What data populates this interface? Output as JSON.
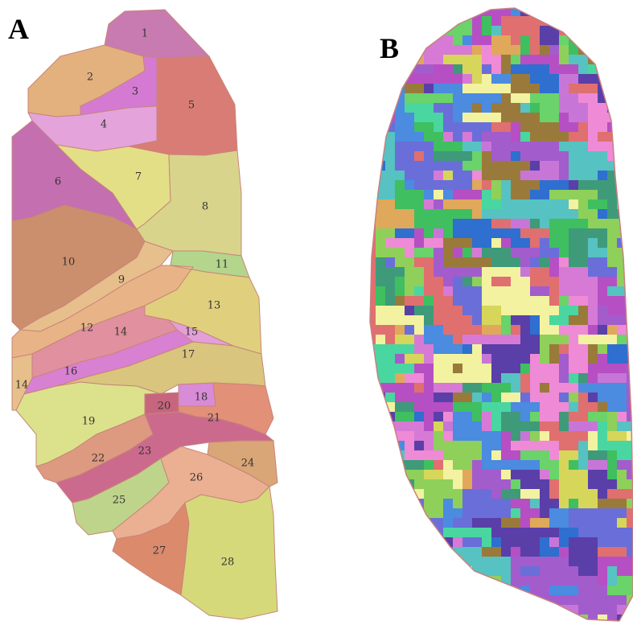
{
  "panels": [
    {
      "id": "A",
      "label": "A"
    },
    {
      "id": "B",
      "label": "B"
    }
  ],
  "panel_a": {
    "outline_color": "#c8857a",
    "regions": [
      {
        "id": "1",
        "label": "1",
        "color": "#c87bb0"
      },
      {
        "id": "2",
        "label": "2",
        "color": "#e3b17e"
      },
      {
        "id": "3",
        "label": "3",
        "color": "#d57ad2"
      },
      {
        "id": "4",
        "label": "4",
        "color": "#e5a3dc"
      },
      {
        "id": "5",
        "label": "5",
        "color": "#d97c76"
      },
      {
        "id": "6",
        "label": "6",
        "color": "#c46fb0"
      },
      {
        "id": "7",
        "label": "7",
        "color": "#e3df86"
      },
      {
        "id": "8",
        "label": "8",
        "color": "#d9d48c"
      },
      {
        "id": "9",
        "label": "9",
        "color": "#e7bf8c"
      },
      {
        "id": "10",
        "label": "10",
        "color": "#cc8f6e"
      },
      {
        "id": "11",
        "label": "11",
        "color": "#b3d58c"
      },
      {
        "id": "12",
        "label": "12",
        "color": "#e8b487"
      },
      {
        "id": "13",
        "label": "13",
        "color": "#e0d07e"
      },
      {
        "id": "14",
        "label": "14",
        "color": "#e0909e"
      },
      {
        "id": "15",
        "label": "15",
        "color": "#e29fd9"
      },
      {
        "id": "16",
        "label": "16",
        "color": "#d880d2"
      },
      {
        "id": "17",
        "label": "17",
        "color": "#d9c57e"
      },
      {
        "id": "18",
        "label": "18",
        "color": "#d88bd6"
      },
      {
        "id": "19",
        "label": "19",
        "color": "#dbe28b"
      },
      {
        "id": "20",
        "label": "20",
        "color": "#c7657e"
      },
      {
        "id": "21",
        "label": "21",
        "color": "#e39078"
      },
      {
        "id": "22",
        "label": "22",
        "color": "#dd9a80"
      },
      {
        "id": "23",
        "label": "23",
        "color": "#cc6a8d"
      },
      {
        "id": "24",
        "label": "24",
        "color": "#d9a677"
      },
      {
        "id": "25",
        "label": "25",
        "color": "#bfd48b"
      },
      {
        "id": "26",
        "label": "26",
        "color": "#eab091"
      },
      {
        "id": "27",
        "label": "27",
        "color": "#dc8a6c"
      },
      {
        "id": "28",
        "label": "28",
        "color": "#d6d97a"
      },
      {
        "id": "14b",
        "label": "14",
        "color": "#e6bf8a"
      }
    ]
  },
  "panel_b": {
    "palette": [
      "#c776d8",
      "#3fbf5f",
      "#4b8be0",
      "#a35ccc",
      "#6ad36a",
      "#d67ad6",
      "#2e6fd0",
      "#e06f6f",
      "#56c2c2",
      "#8ed05a",
      "#b64fc4",
      "#e0a85a",
      "#3f9a7a",
      "#6a6ed8",
      "#d6d65a",
      "#5a3fa8",
      "#ef8ad6",
      "#4ad6a0",
      "#9a7a3a",
      "#f2f2a0"
    ]
  }
}
